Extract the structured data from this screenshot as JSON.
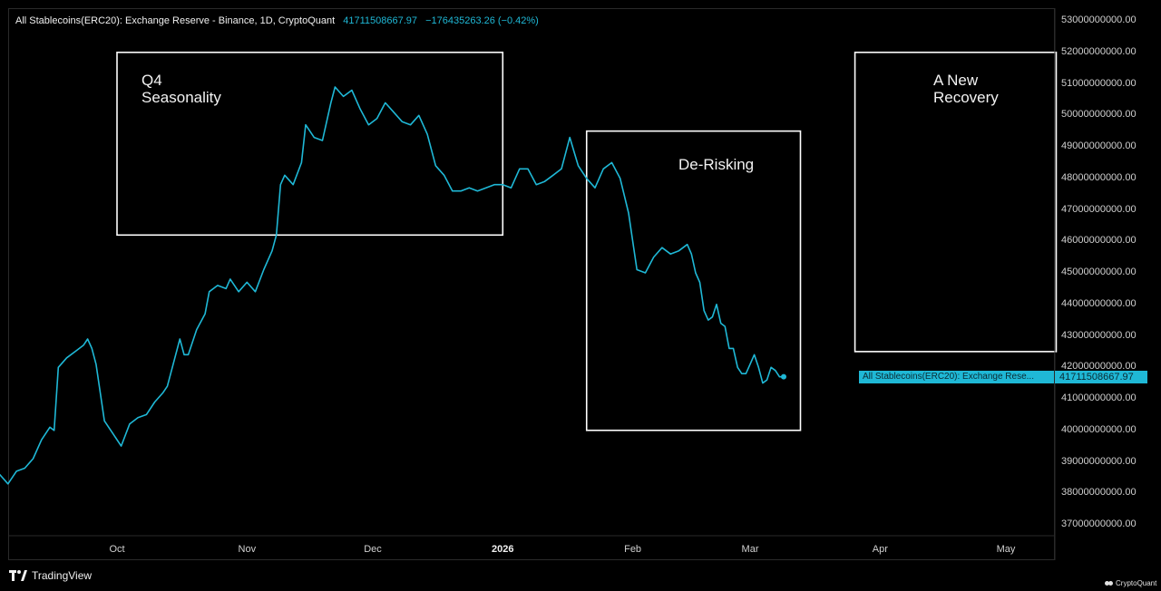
{
  "header": {
    "title": "All Stablecoins(ERC20): Exchange Reserve - Binance, 1D, CryptoQuant",
    "last_value": "41711508667.97",
    "change": "−176435263.26 (−0.42%)"
  },
  "annotations": {
    "q4": "Q4\nSeasonality",
    "derisking": "De-Risking",
    "recovery": "A New\nRecovery"
  },
  "price_tag": "41711508667.97",
  "series_label": "All Stablecoins(ERC20): Exchange Rese...",
  "footer": {
    "tradingview": "TradingView",
    "cryptoquant": "CryptoQuant"
  },
  "colors": {
    "line": "#1fb8d6",
    "background": "#000000",
    "box": "#ffffff"
  },
  "icons": [
    "tradingview-logo-icon",
    "cryptoquant-logo-icon"
  ],
  "chart_data": {
    "type": "line",
    "title": "All Stablecoins(ERC20): Exchange Reserve - Binance, 1D, CryptoQuant",
    "ylim": [
      36500000000,
      53500000000
    ],
    "y_ticks": [
      "53000000000.00",
      "52000000000.00",
      "51000000000.00",
      "50000000000.00",
      "49000000000.00",
      "48000000000.00",
      "47000000000.00",
      "46000000000.00",
      "45000000000.00",
      "44000000000.00",
      "43000000000.00",
      "42000000000.00",
      "41000000000.00",
      "40000000000.00",
      "39000000000.00",
      "38000000000.00",
      "37000000000.00"
    ],
    "x_ticks": [
      {
        "label": "Oct",
        "date": "2025-10-01",
        "bold": false
      },
      {
        "label": "Nov",
        "date": "2025-11-01",
        "bold": false
      },
      {
        "label": "Dec",
        "date": "2025-12-01",
        "bold": false
      },
      {
        "label": "2026",
        "date": "2026-01-01",
        "bold": true
      },
      {
        "label": "Feb",
        "date": "2026-02-01",
        "bold": false
      },
      {
        "label": "Mar",
        "date": "2026-03-01",
        "bold": false
      },
      {
        "label": "Apr",
        "date": "2026-04-01",
        "bold": false
      },
      {
        "label": "May",
        "date": "2026-05-01",
        "bold": false
      }
    ],
    "series": [
      {
        "name": "All Stablecoins(ERC20): Exchange Reserve",
        "points": [
          [
            "2025-09-03",
            38600000000
          ],
          [
            "2025-09-05",
            38300000000
          ],
          [
            "2025-09-07",
            38700000000
          ],
          [
            "2025-09-09",
            38800000000
          ],
          [
            "2025-09-11",
            39100000000
          ],
          [
            "2025-09-13",
            39700000000
          ],
          [
            "2025-09-15",
            40100000000
          ],
          [
            "2025-09-16",
            40000000000
          ],
          [
            "2025-09-17",
            42000000000
          ],
          [
            "2025-09-19",
            42300000000
          ],
          [
            "2025-09-21",
            42500000000
          ],
          [
            "2025-09-23",
            42700000000
          ],
          [
            "2025-09-24",
            42900000000
          ],
          [
            "2025-09-25",
            42600000000
          ],
          [
            "2025-09-26",
            42100000000
          ],
          [
            "2025-09-28",
            40300000000
          ],
          [
            "2025-09-30",
            39900000000
          ],
          [
            "2025-10-02",
            39500000000
          ],
          [
            "2025-10-04",
            40200000000
          ],
          [
            "2025-10-06",
            40400000000
          ],
          [
            "2025-10-08",
            40500000000
          ],
          [
            "2025-10-10",
            40900000000
          ],
          [
            "2025-10-12",
            41200000000
          ],
          [
            "2025-10-13",
            41400000000
          ],
          [
            "2025-10-16",
            42900000000
          ],
          [
            "2025-10-17",
            42400000000
          ],
          [
            "2025-10-18",
            42400000000
          ],
          [
            "2025-10-20",
            43200000000
          ],
          [
            "2025-10-22",
            43700000000
          ],
          [
            "2025-10-23",
            44400000000
          ],
          [
            "2025-10-25",
            44600000000
          ],
          [
            "2025-10-27",
            44500000000
          ],
          [
            "2025-10-28",
            44800000000
          ],
          [
            "2025-10-30",
            44400000000
          ],
          [
            "2025-11-01",
            44700000000
          ],
          [
            "2025-11-03",
            44400000000
          ],
          [
            "2025-11-05",
            45100000000
          ],
          [
            "2025-11-07",
            45700000000
          ],
          [
            "2025-11-08",
            46200000000
          ],
          [
            "2025-11-09",
            47800000000
          ],
          [
            "2025-11-10",
            48100000000
          ],
          [
            "2025-11-12",
            47800000000
          ],
          [
            "2025-11-14",
            48500000000
          ],
          [
            "2025-11-15",
            49700000000
          ],
          [
            "2025-11-17",
            49300000000
          ],
          [
            "2025-11-19",
            49200000000
          ],
          [
            "2025-11-21",
            50400000000
          ],
          [
            "2025-11-22",
            50900000000
          ],
          [
            "2025-11-24",
            50600000000
          ],
          [
            "2025-11-26",
            50800000000
          ],
          [
            "2025-11-28",
            50200000000
          ],
          [
            "2025-11-30",
            49700000000
          ],
          [
            "2025-12-02",
            49900000000
          ],
          [
            "2025-12-04",
            50400000000
          ],
          [
            "2025-12-06",
            50100000000
          ],
          [
            "2025-12-08",
            49800000000
          ],
          [
            "2025-12-10",
            49700000000
          ],
          [
            "2025-12-12",
            50000000000
          ],
          [
            "2025-12-14",
            49400000000
          ],
          [
            "2025-12-16",
            48400000000
          ],
          [
            "2025-12-18",
            48100000000
          ],
          [
            "2025-12-20",
            47600000000
          ],
          [
            "2025-12-22",
            47600000000
          ],
          [
            "2025-12-24",
            47700000000
          ],
          [
            "2025-12-26",
            47600000000
          ],
          [
            "2025-12-28",
            47700000000
          ],
          [
            "2025-12-30",
            47800000000
          ],
          [
            "2026-01-01",
            47800000000
          ],
          [
            "2026-01-03",
            47700000000
          ],
          [
            "2026-01-05",
            48300000000
          ],
          [
            "2026-01-07",
            48300000000
          ],
          [
            "2026-01-09",
            47800000000
          ],
          [
            "2026-01-11",
            47900000000
          ],
          [
            "2026-01-13",
            48100000000
          ],
          [
            "2026-01-15",
            48300000000
          ],
          [
            "2026-01-17",
            49300000000
          ],
          [
            "2026-01-19",
            48400000000
          ],
          [
            "2026-01-21",
            48000000000
          ],
          [
            "2026-01-23",
            47700000000
          ],
          [
            "2026-01-25",
            48300000000
          ],
          [
            "2026-01-27",
            48500000000
          ],
          [
            "2026-01-29",
            48000000000
          ],
          [
            "2026-01-31",
            46900000000
          ],
          [
            "2026-02-02",
            45100000000
          ],
          [
            "2026-02-04",
            45000000000
          ],
          [
            "2026-02-06",
            45500000000
          ],
          [
            "2026-02-08",
            45800000000
          ],
          [
            "2026-02-10",
            45600000000
          ],
          [
            "2026-02-12",
            45700000000
          ],
          [
            "2026-02-14",
            45900000000
          ],
          [
            "2026-02-15",
            45600000000
          ],
          [
            "2026-02-16",
            45000000000
          ],
          [
            "2026-02-17",
            44700000000
          ],
          [
            "2026-02-18",
            43800000000
          ],
          [
            "2026-02-19",
            43500000000
          ],
          [
            "2026-02-20",
            43600000000
          ],
          [
            "2026-02-21",
            44000000000
          ],
          [
            "2026-02-22",
            43400000000
          ],
          [
            "2026-02-23",
            43300000000
          ],
          [
            "2026-02-24",
            42600000000
          ],
          [
            "2026-02-25",
            42600000000
          ],
          [
            "2026-02-26",
            42000000000
          ],
          [
            "2026-02-27",
            41800000000
          ],
          [
            "2026-02-28",
            41800000000
          ],
          [
            "2026-03-01",
            42100000000
          ],
          [
            "2026-03-02",
            42400000000
          ],
          [
            "2026-03-03",
            42000000000
          ],
          [
            "2026-03-04",
            41500000000
          ],
          [
            "2026-03-05",
            41600000000
          ],
          [
            "2026-03-06",
            42000000000
          ],
          [
            "2026-03-07",
            41900000000
          ],
          [
            "2026-03-08",
            41700000000
          ],
          [
            "2026-03-09",
            41700000000
          ]
        ]
      }
    ],
    "boxes": [
      {
        "label": "Q4 Seasonality",
        "x0": "2025-10-01",
        "x1": "2026-01-01",
        "y0": 46200000000,
        "y1": 52000000000
      },
      {
        "label": "De-Risking",
        "x0": "2026-01-21",
        "x1": "2026-03-13",
        "y0": 40000000000,
        "y1": 49500000000
      },
      {
        "label": "A New Recovery",
        "x0": "2026-03-26",
        "x1": "2026-05-13",
        "y0": 42500000000,
        "y1": 52000000000
      }
    ],
    "grid": false,
    "legend": "none"
  }
}
